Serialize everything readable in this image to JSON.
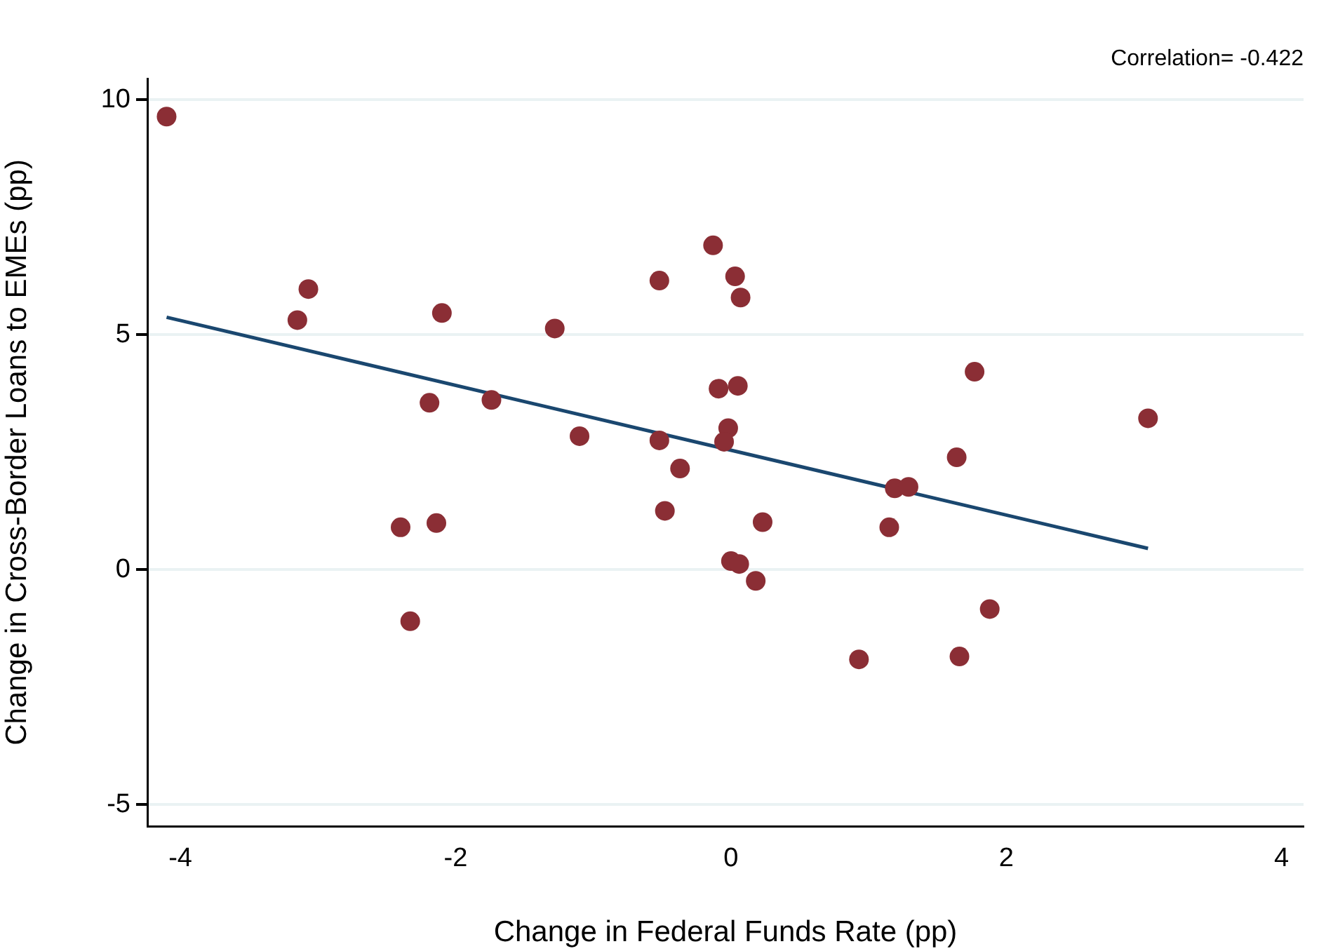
{
  "chart_data": {
    "type": "scatter",
    "xlabel": "Change in Federal Funds Rate (pp)",
    "ylabel": "Change in Cross-Border Loans to EMEs (pp)",
    "annotations": [
      "Correlation= -0.422"
    ],
    "xlim": [
      -4.24,
      4.16
    ],
    "xticks": [
      -4,
      -2,
      0,
      2,
      4
    ],
    "ylim": [
      -5.46,
      10.45
    ],
    "yticks": [
      -5,
      0,
      5,
      10
    ],
    "grid": "y",
    "marker": "circle",
    "legend": false,
    "series": [
      {
        "color": "#8b2e35",
        "x": [
          -4.1,
          -3.15,
          -3.07,
          -2.1,
          -2.19,
          -2.4,
          -2.14,
          -2.33,
          -1.74,
          -1.28,
          -1.1,
          -0.52,
          -0.52,
          -0.48,
          -0.37,
          -0.13,
          -0.09,
          0.03,
          0.07,
          0.05,
          -0.02,
          -0.05,
          0.0,
          0.06,
          0.18,
          0.23,
          0.93,
          1.15,
          1.19,
          1.29,
          1.64,
          1.77,
          1.66,
          1.88,
          3.03
        ],
        "values": [
          9.64,
          5.31,
          5.97,
          5.46,
          3.55,
          0.9,
          0.99,
          -1.1,
          3.61,
          5.13,
          2.84,
          6.15,
          2.75,
          1.25,
          2.15,
          6.9,
          3.85,
          6.24,
          5.79,
          3.91,
          3.01,
          2.72,
          0.18,
          0.12,
          -0.24,
          1.01,
          -1.91,
          0.9,
          1.73,
          1.76,
          2.39,
          4.21,
          -1.85,
          -0.84,
          3.22
        ]
      },
      {
        "type": "line",
        "color": "#1a476f",
        "marker": "none",
        "x": [
          -4.1,
          3.03
        ],
        "values": [
          5.37,
          0.45
        ]
      }
    ]
  }
}
